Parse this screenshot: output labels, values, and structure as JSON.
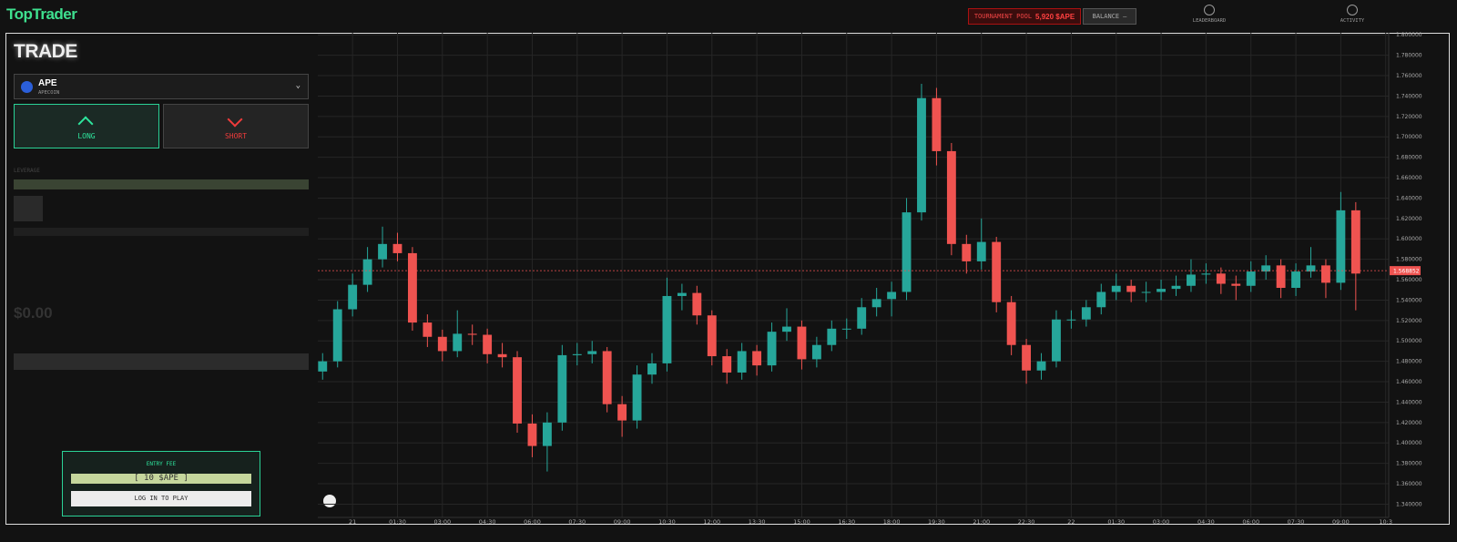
{
  "header": {
    "logo": "TopTrader",
    "pool_label": "TOURNAMENT POOL",
    "pool_value": "5,920 $APE",
    "balance_label": "BALANCE",
    "balance_value": "—",
    "nav": [
      "LEADERBOARD",
      "ACTIVITY"
    ]
  },
  "trade_panel": {
    "title": "TRADE",
    "asset": "APE",
    "asset_name": "APECOIN",
    "long": "LONG",
    "short": "SHORT",
    "leverage_label": "LEVERAGE",
    "amount": "$0.00",
    "entry_label": "ENTRY FEE",
    "entry_fee": "[ 10 $APE ]",
    "login": "LOG IN TO PLAY"
  },
  "chart_data": {
    "type": "candlestick",
    "colors": {
      "up": "#26a69a",
      "down": "#ef5350"
    },
    "grid": true,
    "last_price": 1.568852,
    "x": [
      -1,
      -0.5,
      0,
      0.5,
      1,
      1.5,
      2,
      2.5,
      3,
      3.5,
      4,
      4.5,
      5,
      5.5,
      6,
      6.5,
      7,
      7.5,
      8,
      8.5,
      9,
      9.5,
      10,
      10.5,
      11,
      11.5,
      12,
      12.5,
      13,
      13.5,
      14,
      14.5,
      15,
      15.5,
      16,
      16.5,
      17,
      17.5,
      18,
      18.5,
      19,
      19.5,
      20,
      20.5,
      21,
      21.5,
      22,
      22.5,
      23,
      23.5,
      24,
      24.5,
      25,
      25.5,
      26,
      26.5,
      27,
      27.5,
      28,
      28.5,
      29,
      29.5,
      30,
      30.5,
      31,
      31.5,
      32,
      32.5,
      33,
      33.5
    ],
    "open": [
      1.47,
      1.48,
      1.531,
      1.555,
      1.58,
      1.595,
      1.586,
      1.518,
      1.504,
      1.49,
      1.507,
      1.506,
      1.487,
      1.484,
      1.419,
      1.397,
      1.42,
      1.486,
      1.487,
      1.49,
      1.438,
      1.422,
      1.467,
      1.478,
      1.544,
      1.547,
      1.525,
      1.485,
      1.469,
      1.49,
      1.476,
      1.509,
      1.514,
      1.482,
      1.496,
      1.512,
      1.512,
      1.533,
      1.541,
      1.548,
      1.626,
      1.738,
      1.686,
      1.595,
      1.578,
      1.597,
      1.538,
      1.496,
      1.471,
      1.48,
      1.521,
      1.521,
      1.533,
      1.548,
      1.554,
      1.548,
      1.548,
      1.551,
      1.554,
      1.565,
      1.566,
      1.556,
      1.554,
      1.568,
      1.574,
      1.552,
      1.568,
      1.574,
      1.557,
      1.628
    ],
    "high": [
      1.488,
      1.539,
      1.566,
      1.592,
      1.612,
      1.606,
      1.592,
      1.526,
      1.511,
      1.53,
      1.516,
      1.512,
      1.498,
      1.49,
      1.428,
      1.43,
      1.496,
      1.498,
      1.5,
      1.494,
      1.446,
      1.476,
      1.488,
      1.562,
      1.556,
      1.554,
      1.53,
      1.492,
      1.498,
      1.496,
      1.518,
      1.532,
      1.52,
      1.504,
      1.52,
      1.522,
      1.542,
      1.552,
      1.558,
      1.64,
      1.752,
      1.748,
      1.694,
      1.604,
      1.62,
      1.602,
      1.544,
      1.502,
      1.488,
      1.53,
      1.53,
      1.54,
      1.556,
      1.566,
      1.56,
      1.558,
      1.56,
      1.564,
      1.58,
      1.576,
      1.572,
      1.564,
      1.578,
      1.584,
      1.58,
      1.576,
      1.592,
      1.58,
      1.646,
      1.636
    ],
    "low": [
      1.462,
      1.474,
      1.524,
      1.548,
      1.572,
      1.578,
      1.51,
      1.494,
      1.48,
      1.484,
      1.496,
      1.478,
      1.474,
      1.41,
      1.386,
      1.372,
      1.412,
      1.476,
      1.478,
      1.43,
      1.406,
      1.414,
      1.458,
      1.47,
      1.53,
      1.516,
      1.476,
      1.458,
      1.462,
      1.466,
      1.47,
      1.5,
      1.472,
      1.474,
      1.49,
      1.502,
      1.506,
      1.524,
      1.524,
      1.54,
      1.618,
      1.672,
      1.584,
      1.566,
      1.57,
      1.528,
      1.486,
      1.458,
      1.462,
      1.474,
      1.512,
      1.514,
      1.526,
      1.54,
      1.538,
      1.538,
      1.54,
      1.544,
      1.548,
      1.556,
      1.546,
      1.54,
      1.548,
      1.56,
      1.542,
      1.544,
      1.562,
      1.542,
      1.55,
      1.53
    ],
    "close": [
      1.48,
      1.531,
      1.555,
      1.58,
      1.595,
      1.586,
      1.518,
      1.504,
      1.49,
      1.507,
      1.506,
      1.487,
      1.484,
      1.419,
      1.397,
      1.42,
      1.486,
      1.487,
      1.49,
      1.438,
      1.422,
      1.467,
      1.478,
      1.544,
      1.547,
      1.525,
      1.485,
      1.469,
      1.49,
      1.476,
      1.509,
      1.514,
      1.482,
      1.496,
      1.512,
      1.512,
      1.533,
      1.541,
      1.548,
      1.626,
      1.738,
      1.686,
      1.595,
      1.578,
      1.597,
      1.538,
      1.496,
      1.471,
      1.48,
      1.521,
      1.521,
      1.533,
      1.548,
      1.554,
      1.548,
      1.548,
      1.551,
      1.554,
      1.565,
      1.566,
      1.556,
      1.554,
      1.568,
      1.574,
      1.552,
      1.568,
      1.574,
      1.557,
      1.628,
      1.566
    ],
    "xlim": [
      -1.16,
      34.6
    ],
    "xticks": [
      {
        "value": 0,
        "label": "21"
      },
      {
        "value": 1.5,
        "label": "01:30"
      },
      {
        "value": 3,
        "label": "03:00"
      },
      {
        "value": 4.5,
        "label": "04:30"
      },
      {
        "value": 6,
        "label": "06:00"
      },
      {
        "value": 7.5,
        "label": "07:30"
      },
      {
        "value": 9,
        "label": "09:00"
      },
      {
        "value": 10.5,
        "label": "10:30"
      },
      {
        "value": 12,
        "label": "12:00"
      },
      {
        "value": 13.5,
        "label": "13:30"
      },
      {
        "value": 15,
        "label": "15:00"
      },
      {
        "value": 16.5,
        "label": "16:30"
      },
      {
        "value": 18,
        "label": "18:00"
      },
      {
        "value": 19.5,
        "label": "19:30"
      },
      {
        "value": 21,
        "label": "21:00"
      },
      {
        "value": 22.5,
        "label": "22:30"
      },
      {
        "value": 24,
        "label": "22"
      },
      {
        "value": 25.5,
        "label": "01:30"
      },
      {
        "value": 27,
        "label": "03:00"
      },
      {
        "value": 28.5,
        "label": "04:30"
      },
      {
        "value": 30,
        "label": "06:00"
      },
      {
        "value": 31.5,
        "label": "07:30"
      },
      {
        "value": 33,
        "label": "09:00"
      },
      {
        "value": 34.5,
        "label": "10:3"
      }
    ],
    "ylim": [
      1.327,
      1.802
    ],
    "yticks": [
      {
        "value": 1.34,
        "label": "1.340000"
      },
      {
        "value": 1.36,
        "label": "1.360000"
      },
      {
        "value": 1.38,
        "label": "1.380000"
      },
      {
        "value": 1.4,
        "label": "1.400000"
      },
      {
        "value": 1.42,
        "label": "1.420000"
      },
      {
        "value": 1.44,
        "label": "1.440000"
      },
      {
        "value": 1.46,
        "label": "1.460000"
      },
      {
        "value": 1.48,
        "label": "1.480000"
      },
      {
        "value": 1.5,
        "label": "1.500000"
      },
      {
        "value": 1.52,
        "label": "1.520000"
      },
      {
        "value": 1.54,
        "label": "1.540000"
      },
      {
        "value": 1.56,
        "label": "1.560000"
      },
      {
        "value": 1.58,
        "label": "1.580000"
      },
      {
        "value": 1.6,
        "label": "1.600000"
      },
      {
        "value": 1.62,
        "label": "1.620000"
      },
      {
        "value": 1.64,
        "label": "1.640000"
      },
      {
        "value": 1.66,
        "label": "1.660000"
      },
      {
        "value": 1.68,
        "label": "1.680000"
      },
      {
        "value": 1.7,
        "label": "1.700000"
      },
      {
        "value": 1.72,
        "label": "1.720000"
      },
      {
        "value": 1.74,
        "label": "1.740000"
      },
      {
        "value": 1.76,
        "label": "1.760000"
      },
      {
        "value": 1.78,
        "label": "1.780000"
      },
      {
        "value": 1.8,
        "label": "1.800000"
      }
    ]
  }
}
